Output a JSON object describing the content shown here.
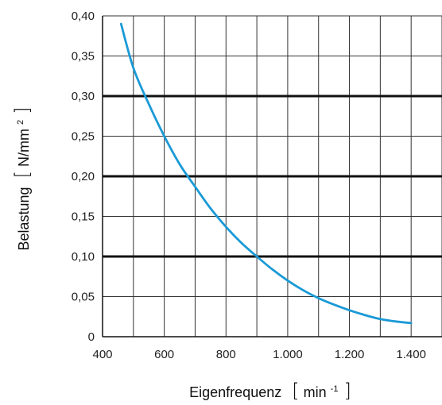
{
  "chart_data": {
    "type": "line",
    "title": "",
    "xlabel": {
      "text": "Eigenfrequenz",
      "unit_base": "min",
      "unit_sup": "-1"
    },
    "ylabel": {
      "text": "Belastung",
      "unit_base": "N/mm",
      "unit_sup": "2"
    },
    "xlim": [
      400,
      1500
    ],
    "ylim": [
      0,
      0.4
    ],
    "x_ticks": [
      400,
      600,
      800,
      1000,
      1200,
      1400
    ],
    "x_tick_labels": [
      "400",
      "600",
      "800",
      "1.000",
      "1.200",
      "1.400"
    ],
    "y_ticks": [
      0,
      0.05,
      0.1,
      0.15,
      0.2,
      0.25,
      0.3,
      0.35,
      0.4
    ],
    "y_tick_labels": [
      "0",
      "0,05",
      "0,10",
      "0,15",
      "0,20",
      "0,25",
      "0,30",
      "0,35",
      "0,40"
    ],
    "x_minor_step": 100,
    "y_bold_grid": [
      0.1,
      0.2,
      0.3
    ],
    "grid": true,
    "series": [
      {
        "color": "#1a9ad6",
        "x": [
          460,
          500,
          550,
          600,
          650,
          700,
          750,
          800,
          850,
          900,
          950,
          1000,
          1050,
          1100,
          1150,
          1200,
          1250,
          1300,
          1350,
          1400
        ],
        "y": [
          0.39,
          0.335,
          0.29,
          0.25,
          0.215,
          0.187,
          0.16,
          0.137,
          0.117,
          0.1,
          0.084,
          0.07,
          0.058,
          0.048,
          0.04,
          0.033,
          0.027,
          0.022,
          0.019,
          0.017
        ]
      }
    ]
  }
}
